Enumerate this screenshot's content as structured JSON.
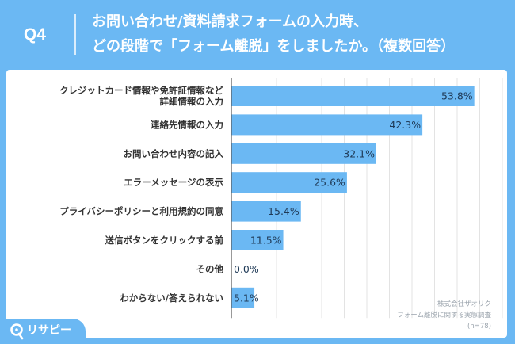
{
  "header": {
    "question_no": "Q4",
    "title_line1": "お問い合わせ/資料請求フォームの入力時、",
    "title_line2": "どの段階で「フォーム離脱」をしましたか。（複数回答）"
  },
  "chart_data": {
    "type": "bar",
    "orientation": "horizontal",
    "categories": [
      [
        "クレジットカード情報や免許証情報など",
        "詳細情報の入力"
      ],
      [
        "連絡先情報の入力"
      ],
      [
        "お問い合わせ内容の記入"
      ],
      [
        "エラーメッセージの表示"
      ],
      [
        "プライバシーポリシーと利用規約の同意"
      ],
      [
        "送信ボタンをクリックする前"
      ],
      [
        "その他"
      ],
      [
        "わからない/答えられない"
      ]
    ],
    "values": [
      53.8,
      42.3,
      32.1,
      25.6,
      15.4,
      11.5,
      0.0,
      5.1
    ],
    "value_labels": [
      "53.8%",
      "42.3%",
      "32.1%",
      "25.6%",
      "15.4%",
      "11.5%",
      "0.0%",
      "5.1%"
    ],
    "xlim": [
      0,
      60
    ],
    "grid": true,
    "bar_color": "#6BB8F3"
  },
  "source": {
    "line1": "株式会社ザオリク",
    "line2": "フォーム離脱に関する実態調査",
    "line3": "(n=78)"
  },
  "logo": {
    "text": "リサピー"
  },
  "colors": {
    "accent": "#6BB8F3",
    "text": "#333333",
    "value_text": "#1F3A57"
  }
}
